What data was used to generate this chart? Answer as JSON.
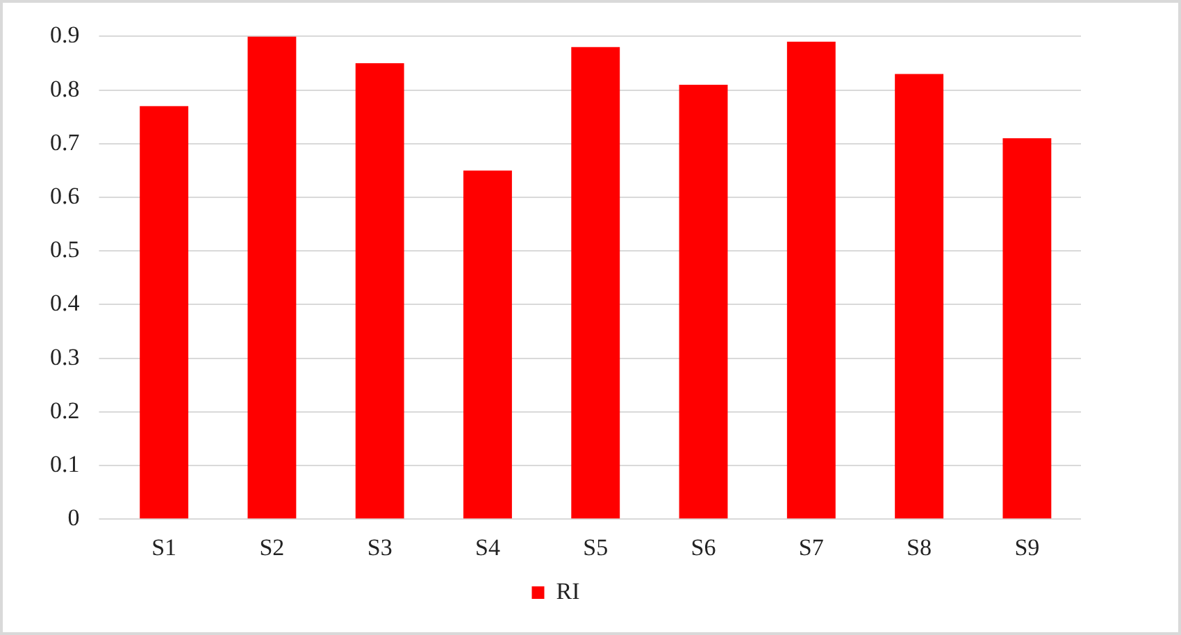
{
  "chart_data": {
    "type": "bar",
    "categories": [
      "S1",
      "S2",
      "S3",
      "S4",
      "S5",
      "S6",
      "S7",
      "S8",
      "S9"
    ],
    "series": [
      {
        "name": "RI",
        "color": "#ff0000",
        "values": [
          0.77,
          0.9,
          0.85,
          0.65,
          0.88,
          0.81,
          0.89,
          0.83,
          0.71
        ]
      }
    ],
    "ylim": [
      0,
      0.9
    ],
    "yticks": [
      0,
      0.1,
      0.2,
      0.3,
      0.4,
      0.5,
      0.6,
      0.7,
      0.8,
      0.9
    ],
    "grid": "y",
    "legend": "bottom"
  }
}
